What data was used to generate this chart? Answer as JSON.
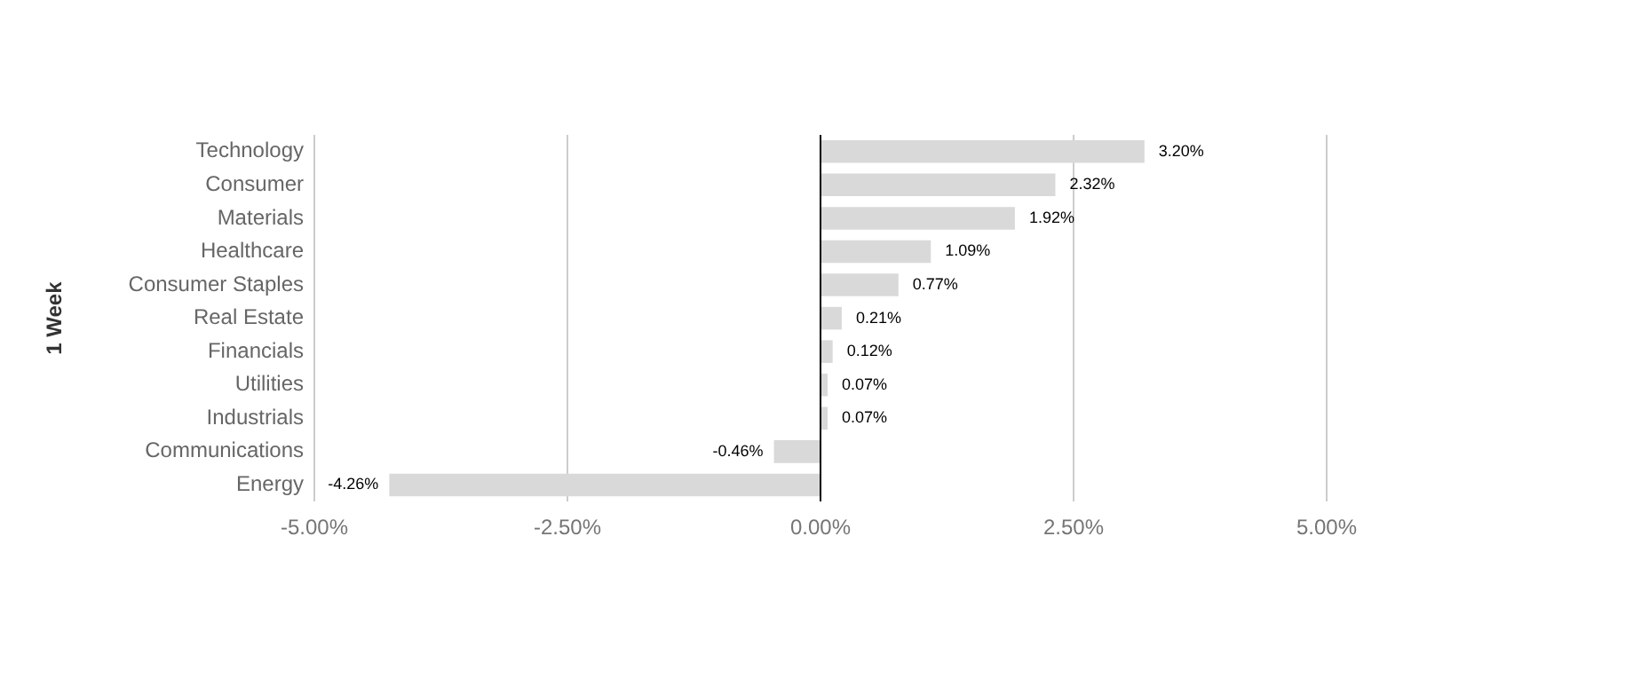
{
  "chart_data": {
    "type": "bar",
    "orientation": "horizontal",
    "ylabel": "1 Week",
    "categories": [
      "Technology",
      "Consumer",
      "Materials",
      "Healthcare",
      "Consumer Staples",
      "Real Estate",
      "Financials",
      "Utilities",
      "Industrials",
      "Communications",
      "Energy"
    ],
    "values": [
      3.2,
      2.32,
      1.92,
      1.09,
      0.77,
      0.21,
      0.12,
      0.07,
      0.07,
      -0.46,
      -4.26
    ],
    "value_labels": [
      "3.20%",
      "2.32%",
      "1.92%",
      "1.09%",
      "0.77%",
      "0.21%",
      "0.12%",
      "0.07%",
      "0.07%",
      "-0.46%",
      "-4.26%"
    ],
    "color": "#d9d9d9",
    "xlim": [
      -5,
      5
    ],
    "xticks": [
      {
        "value": -5,
        "label": "-5.00%"
      },
      {
        "value": -2.5,
        "label": "-2.50%"
      },
      {
        "value": 0,
        "label": "0.00%"
      },
      {
        "value": 2.5,
        "label": "2.50%"
      },
      {
        "value": 5,
        "label": "5.00%"
      }
    ],
    "grid": "x",
    "legend": false
  }
}
